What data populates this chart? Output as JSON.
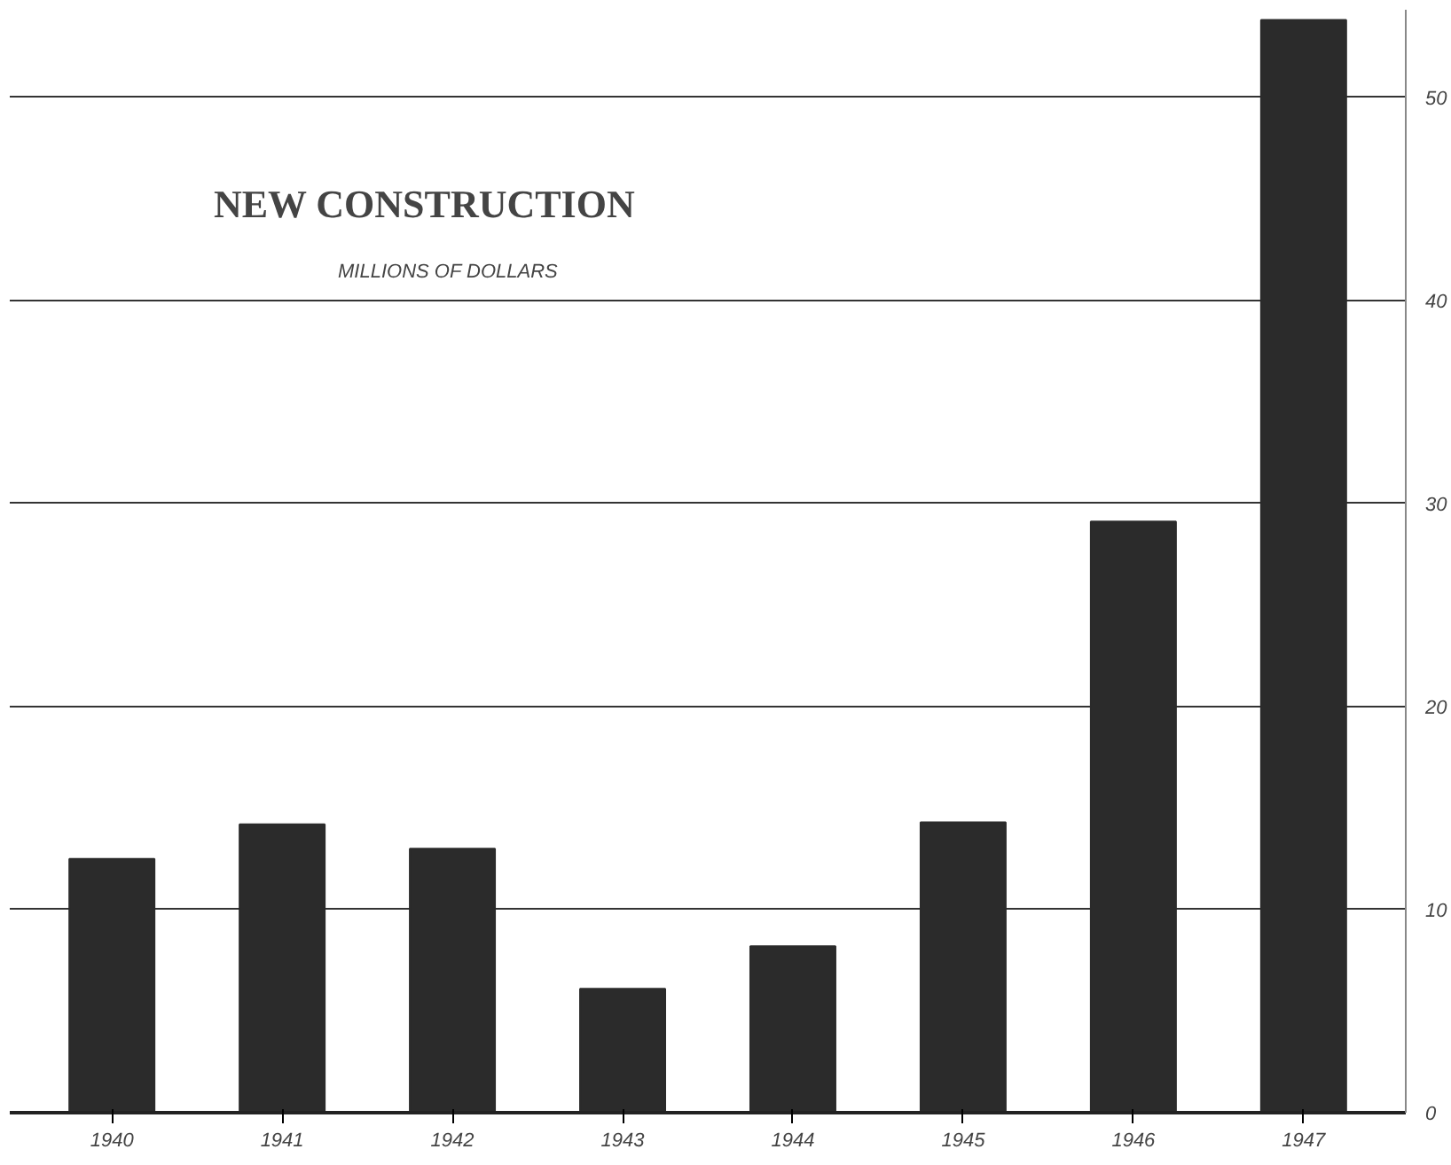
{
  "chart_data": {
    "type": "bar",
    "title": "NEW CONSTRUCTION",
    "subtitle": "MILLIONS OF DOLLARS",
    "categories": [
      "1940",
      "1941",
      "1942",
      "1943",
      "1944",
      "1945",
      "1946",
      "1947"
    ],
    "values": [
      12.5,
      14.2,
      13.0,
      6.1,
      8.2,
      14.3,
      29.1,
      53.8
    ],
    "color": "#2b2b2b",
    "ylim": [
      0,
      54.3
    ],
    "yticks": [
      0,
      10,
      20,
      30,
      40,
      50
    ],
    "grid": "y"
  }
}
